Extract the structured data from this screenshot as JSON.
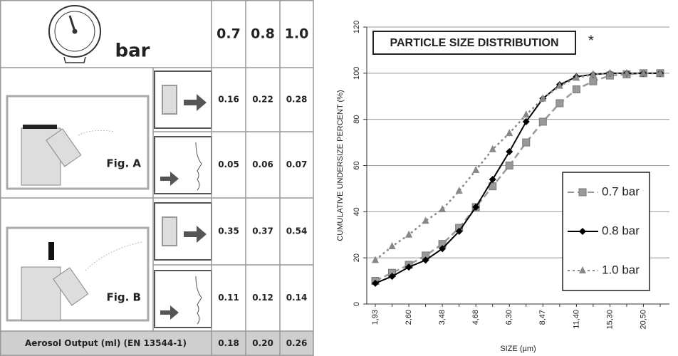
{
  "table": {
    "header": {
      "unit": "bar",
      "columns": [
        "0.7",
        "0.8",
        "1.0"
      ]
    },
    "rows": [
      {
        "figure": "Fig. A",
        "values": [
          [
            "0.16",
            "0.22",
            "0.28"
          ],
          [
            "0.05",
            "0.06",
            "0.07"
          ]
        ]
      },
      {
        "figure": "Fig. B",
        "values": [
          [
            "0.35",
            "0.37",
            "0.54"
          ],
          [
            "0.11",
            "0.12",
            "0.14"
          ]
        ]
      }
    ],
    "footer": {
      "label": "Aerosol Output (ml) (EN 13544-1)",
      "values": [
        "0.18",
        "0.20",
        "0.26"
      ]
    }
  },
  "chart_data": {
    "type": "line",
    "title": "PARTICLE SIZE DISTRIBUTION",
    "annotation": "*",
    "x_label": "SIZE (µm)",
    "y_label": "CUMULATIVE UNDERSIZE PERCENT (%)",
    "categories": [
      "1,93",
      null,
      "2,60",
      null,
      "3,48",
      null,
      "4,68",
      null,
      "6,30",
      null,
      "8,47",
      null,
      "11,40",
      null,
      "15,30",
      null,
      "20,50",
      null
    ],
    "ylim": [
      0,
      120
    ],
    "yticks": [
      0,
      20,
      40,
      60,
      80,
      100,
      120
    ],
    "grid": true,
    "legend": "right",
    "series": [
      {
        "name": "0.7 bar",
        "color": "#999999",
        "marker": "square",
        "dash": "dashed",
        "values": [
          10,
          13.5,
          17,
          21,
          26,
          33,
          42,
          51,
          60,
          70,
          79,
          87,
          93,
          96.5,
          99,
          99.5,
          100,
          100
        ]
      },
      {
        "name": "0.8 bar",
        "color": "#000000",
        "marker": "diamond",
        "dash": "solid",
        "values": [
          9,
          12,
          16,
          19,
          24,
          31.5,
          42,
          54,
          66,
          79,
          89,
          95,
          98.5,
          99.5,
          100,
          100,
          100,
          100
        ]
      },
      {
        "name": "1.0 bar",
        "color": "#888888",
        "marker": "triangle",
        "dash": "dotted",
        "values": [
          19,
          25,
          30,
          36,
          41,
          49,
          58,
          67,
          74,
          82,
          89,
          94.5,
          98,
          99.5,
          100,
          100,
          100,
          100
        ]
      }
    ]
  }
}
